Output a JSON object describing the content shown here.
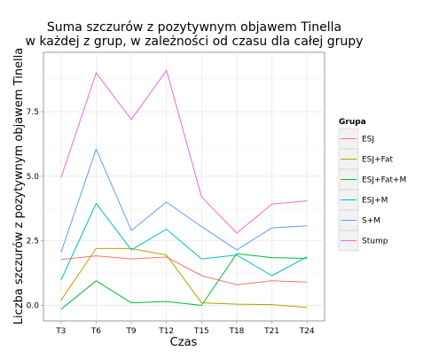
{
  "chart_data": {
    "type": "line",
    "title": "Suma szczurów z pozytywnym objawem Tinella",
    "subtitle": "w każdej z grup, w zależności od czasu dla całej grupy",
    "xlabel": "Czas",
    "ylabel": "Liczba szczurów z pozytywnym objawem Tinella",
    "categories": [
      "T3",
      "T6",
      "T9",
      "T12",
      "T15",
      "T18",
      "T21",
      "T24"
    ],
    "ylim": [
      -0.6,
      9.8
    ],
    "yticks": [
      0.0,
      2.5,
      5.0,
      7.5
    ],
    "ytick_labels": [
      "0.0",
      "2.5",
      "5.0",
      "7.5"
    ],
    "grid": true,
    "legend": {
      "title": "Grupa",
      "position": "right"
    },
    "series": [
      {
        "name": "ESJ",
        "color": "#F8766D",
        "values": [
          1.78,
          1.92,
          1.8,
          1.87,
          1.15,
          0.8,
          0.95,
          0.9
        ]
      },
      {
        "name": "ESJ+Fat",
        "color": "#B79F00",
        "values": [
          0.2,
          2.2,
          2.2,
          1.95,
          0.1,
          0.05,
          0.03,
          -0.08
        ]
      },
      {
        "name": "ESJ+Fat+M",
        "color": "#00BA38",
        "values": [
          -0.15,
          0.95,
          0.1,
          0.15,
          0.0,
          2.0,
          1.85,
          1.82
        ]
      },
      {
        "name": "ESJ+M",
        "color": "#00BFC4",
        "values": [
          0.98,
          3.95,
          2.15,
          2.95,
          1.8,
          1.95,
          1.15,
          1.88
        ]
      },
      {
        "name": "S+M",
        "color": "#619CFF",
        "values": [
          2.05,
          6.05,
          2.9,
          4.0,
          3.05,
          2.15,
          3.0,
          3.08
        ]
      },
      {
        "name": "Stump",
        "color": "#F564E3",
        "values": [
          4.95,
          9.0,
          7.2,
          9.1,
          4.2,
          2.8,
          3.92,
          4.05
        ]
      }
    ]
  }
}
